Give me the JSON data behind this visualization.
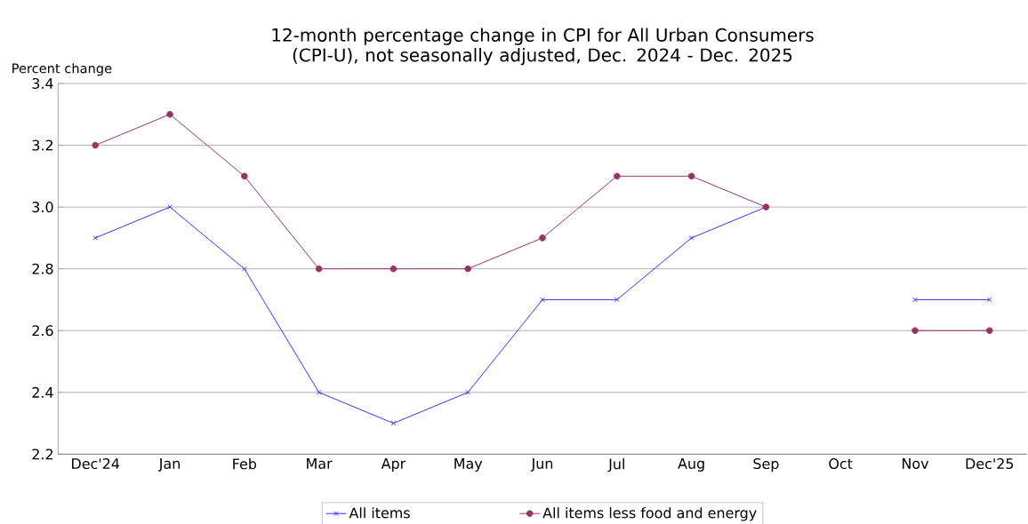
{
  "chart_data": {
    "type": "line",
    "title": "12-month percentage change in CPI for All Urban Consumers (CPI-U), not seasonally adjusted, Dec. 2024 - Dec. 2025",
    "ylabel": "Percent change",
    "categories": [
      "Dec'24",
      "Jan",
      "Feb",
      "Mar",
      "Apr",
      "May",
      "Jun",
      "Jul",
      "Aug",
      "Sep",
      "Oct",
      "Nov",
      "Dec'25"
    ],
    "series": [
      {
        "name": "All items",
        "color": "#3333ff",
        "marker": "cross",
        "values": [
          2.9,
          3.0,
          2.8,
          2.4,
          2.3,
          2.4,
          2.7,
          2.7,
          2.9,
          3.0,
          null,
          2.7,
          2.7
        ]
      },
      {
        "name": "All items less food and energy",
        "color": "#993366",
        "marker": "circle",
        "values": [
          3.2,
          3.3,
          3.1,
          2.8,
          2.8,
          2.8,
          2.9,
          3.1,
          3.1,
          3.0,
          null,
          2.6,
          2.6
        ]
      }
    ],
    "ylim": [
      2.2,
      3.4
    ],
    "yticks": [
      2.2,
      2.4,
      2.6,
      2.8,
      {
        "value": 3.0,
        "label": "3.0"
      },
      3.2,
      3.4
    ],
    "grid": "y",
    "legend": "bottom",
    "line_style": "solid"
  }
}
